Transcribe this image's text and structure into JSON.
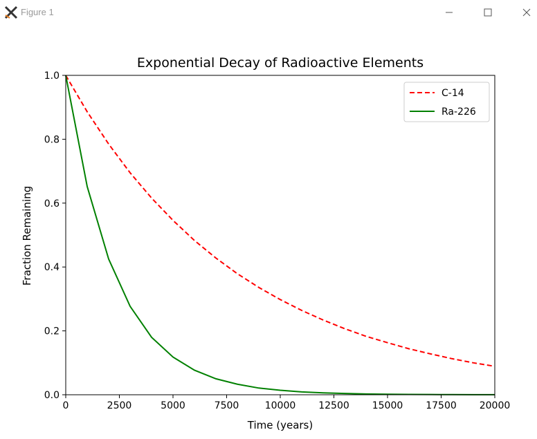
{
  "window": {
    "title": "Figure 1",
    "icon": "matplotlib-figure-icon",
    "controls": [
      "minimize-icon",
      "maximize-icon",
      "close-icon"
    ]
  },
  "chart_data": {
    "type": "line",
    "title": "Exponential Decay of Radioactive Elements",
    "xlabel": "Time (years)",
    "ylabel": "Fraction Remaining",
    "xlim": [
      0,
      20000
    ],
    "ylim": [
      0,
      1.0
    ],
    "xticks": [
      0,
      2500,
      5000,
      7500,
      10000,
      12500,
      15000,
      17500,
      20000
    ],
    "yticks": [
      0.0,
      0.2,
      0.4,
      0.6,
      0.8,
      1.0
    ],
    "xtick_labels": [
      "0",
      "2500",
      "5000",
      "7500",
      "10000",
      "12500",
      "15000",
      "17500",
      "20000"
    ],
    "ytick_labels": [
      "0.0",
      "0.2",
      "0.4",
      "0.6",
      "0.8",
      "1.0"
    ],
    "grid": false,
    "legend_position": "top-right",
    "series": [
      {
        "name": "C-14",
        "color": "#ff0000",
        "linestyle": "dashed",
        "x": [
          0,
          1000,
          2000,
          3000,
          4000,
          5000,
          6000,
          7000,
          8000,
          9000,
          10000,
          11000,
          12000,
          13000,
          14000,
          15000,
          16000,
          17000,
          18000,
          19000,
          20000
        ],
        "y": [
          1.0,
          0.886,
          0.785,
          0.695,
          0.616,
          0.546,
          0.483,
          0.428,
          0.379,
          0.336,
          0.298,
          0.264,
          0.234,
          0.207,
          0.183,
          0.163,
          0.144,
          0.128,
          0.113,
          0.1,
          0.089
        ]
      },
      {
        "name": "Ra-226",
        "color": "#008000",
        "linestyle": "solid",
        "x": [
          0,
          1000,
          2000,
          3000,
          4000,
          5000,
          6000,
          7000,
          8000,
          9000,
          10000,
          11000,
          12000,
          13000,
          14000,
          15000,
          16000,
          17000,
          18000,
          19000,
          20000
        ],
        "y": [
          1.0,
          0.652,
          0.425,
          0.277,
          0.18,
          0.118,
          0.077,
          0.05,
          0.033,
          0.021,
          0.014,
          0.009,
          0.006,
          0.004,
          0.0025,
          0.0016,
          0.001,
          0.0007,
          0.0005,
          0.0003,
          0.0002
        ]
      }
    ]
  }
}
